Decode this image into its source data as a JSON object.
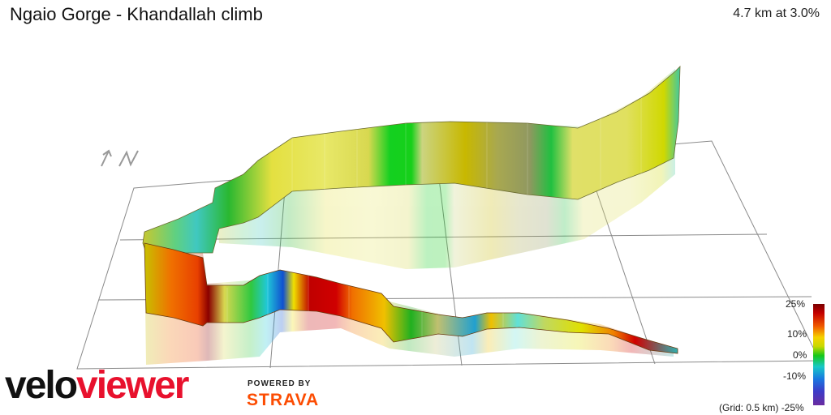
{
  "header": {
    "title": "Ngaio Gorge - Khandallah climb",
    "summary": "4.7 km at 3.0%"
  },
  "compass": {
    "label": "N",
    "icon": "north-arrow-icon"
  },
  "legend": {
    "labels": [
      "25%",
      "10%",
      "0%",
      "-10%",
      "-25%"
    ],
    "grid_note": "(Grid: 0.5 km)"
  },
  "brand": {
    "logo_part1": "velo",
    "logo_part2": "viewer",
    "powered_by": "POWERED BY",
    "strava": "STRAVA"
  },
  "colors": {
    "velo_red": "#e8112d",
    "strava_orange": "#fc4c02",
    "grid_line": "#8a8a8a"
  }
}
